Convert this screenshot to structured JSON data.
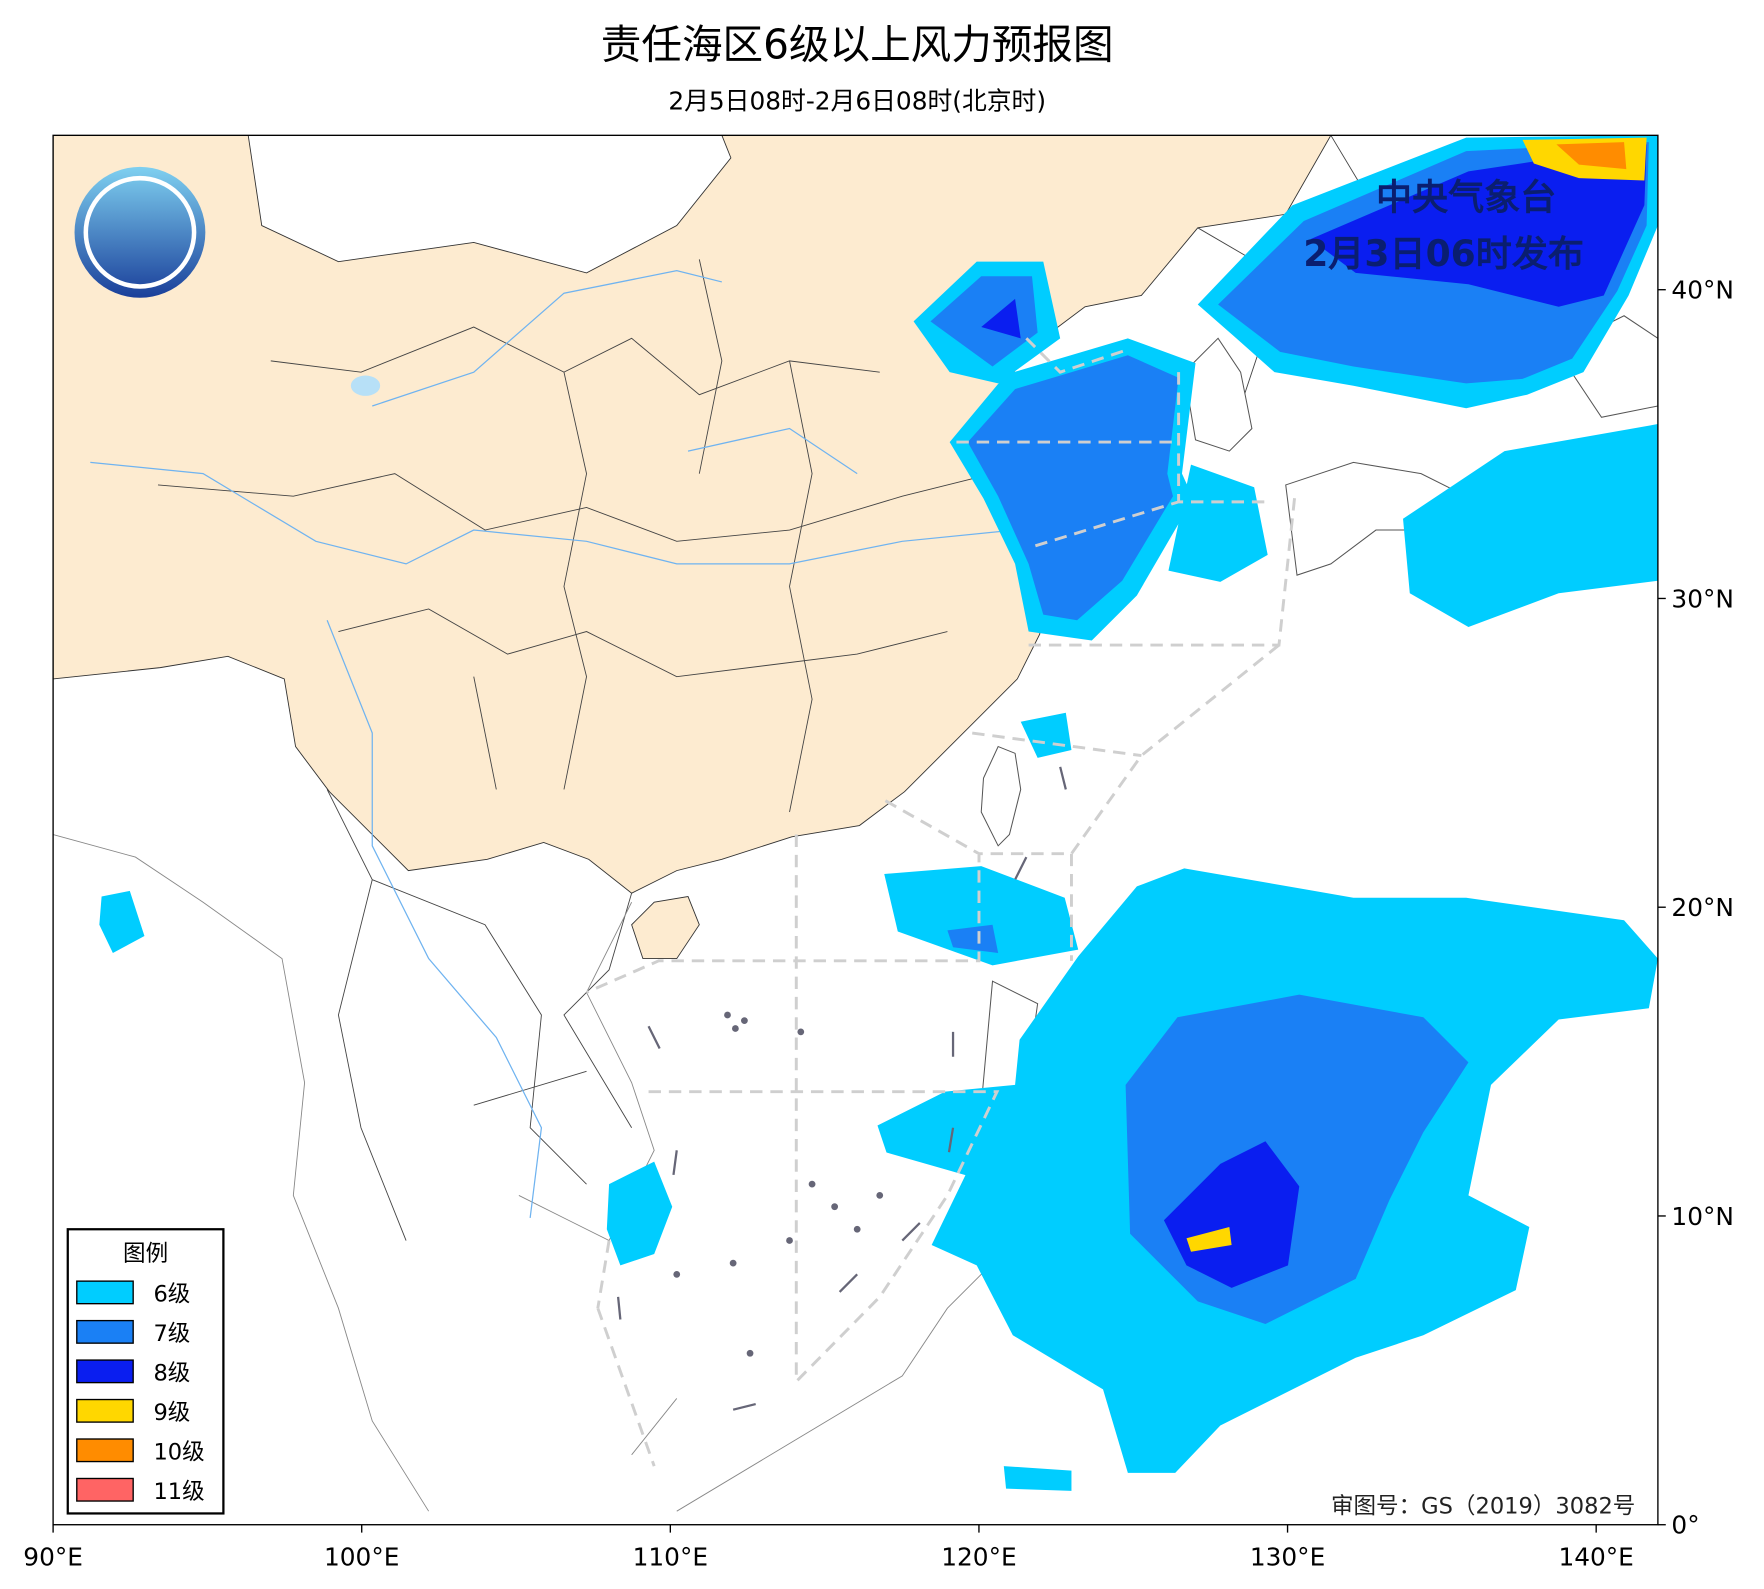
{
  "header": {
    "title": "责任海区6级以上风力预报图",
    "subtitle": "2月5日08时-2月6日08时(北京时)"
  },
  "map": {
    "publisher": "中央气象台",
    "issued": "2月3日06时发布",
    "approval": "审图号：GS（2019）3082号",
    "lonlim": [
      90,
      142
    ],
    "latlim": [
      0,
      45
    ],
    "lonticks": [
      {
        "value": 90,
        "label": "90°E"
      },
      {
        "value": 100,
        "label": "100°E"
      },
      {
        "value": 110,
        "label": "110°E"
      },
      {
        "value": 120,
        "label": "120°E"
      },
      {
        "value": 130,
        "label": "130°E"
      },
      {
        "value": 140,
        "label": "140°E"
      }
    ],
    "latticks": [
      {
        "value": 0,
        "label": "0°"
      },
      {
        "value": 10,
        "label": "10°N"
      },
      {
        "value": 20,
        "label": "20°N"
      },
      {
        "value": 30,
        "label": "30°N"
      },
      {
        "value": 40,
        "label": "40°N"
      }
    ]
  },
  "legend": {
    "title": "图例",
    "items": [
      {
        "label": "6级",
        "color": "#00cdff"
      },
      {
        "label": "7级",
        "color": "#1a80f5"
      },
      {
        "label": "8级",
        "color": "#0a1ef0"
      },
      {
        "label": "9级",
        "color": "#ffd700"
      },
      {
        "label": "10级",
        "color": "#ff8c00"
      },
      {
        "label": "11级",
        "color": "#ff6464"
      }
    ]
  }
}
